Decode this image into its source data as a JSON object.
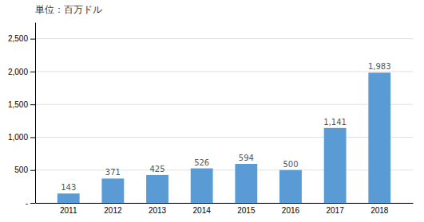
{
  "chart_data": {
    "type": "bar",
    "title": "単位：百万ドル",
    "categories": [
      "2011",
      "2012",
      "2013",
      "2014",
      "2015",
      "2016",
      "2017",
      "2018"
    ],
    "values": [
      143,
      371,
      425,
      526,
      594,
      500,
      1141,
      1983
    ],
    "value_labels": [
      "143",
      "371",
      "425",
      "526",
      "594",
      "500",
      "1,141",
      "1,983"
    ],
    "data_labels": true,
    "color": "#5b9bd5",
    "ylim": [
      0,
      2750
    ],
    "yticks": [
      {
        "value": 0,
        "label": "-"
      },
      500,
      {
        "value": 1000,
        "label": "1,000"
      },
      {
        "value": 1500,
        "label": "1,500"
      },
      {
        "value": 2000,
        "label": "2,000"
      },
      {
        "value": 2500,
        "label": "2,500"
      }
    ],
    "grid": true
  }
}
